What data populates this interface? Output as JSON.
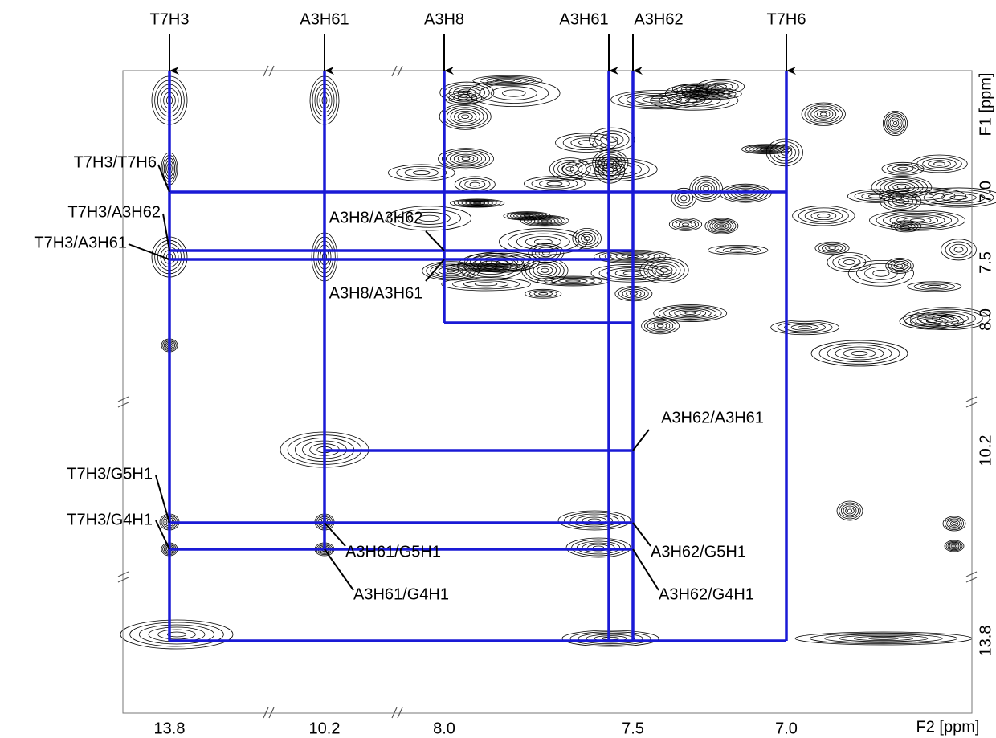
{
  "top_labels": [
    "T7H3",
    "A3H61",
    "A3H8",
    "A3H61",
    "A3H62",
    "T7H6"
  ],
  "x_axis": {
    "ticks": [
      "13.8",
      "10.2",
      "8.0",
      "7.5",
      "7.0"
    ],
    "label": "F2 [ppm]"
  },
  "y_axis": {
    "ticks": [
      "7.0",
      "7.5",
      "8.0",
      "10.2",
      "13.8"
    ],
    "label": "F1 [ppm]"
  },
  "peak_labels": [
    "T7H3/T7H6",
    "T7H3/A3H62",
    "T7H3/A3H61",
    "A3H8/A3H62",
    "A3H8/A3H61",
    "A3H62/A3H61",
    "T7H3/G5H1",
    "T7H3/G4H1",
    "A3H61/G5H1",
    "A3H61/G4H1",
    "A3H62/G5H1",
    "A3H62/G4H1"
  ]
}
